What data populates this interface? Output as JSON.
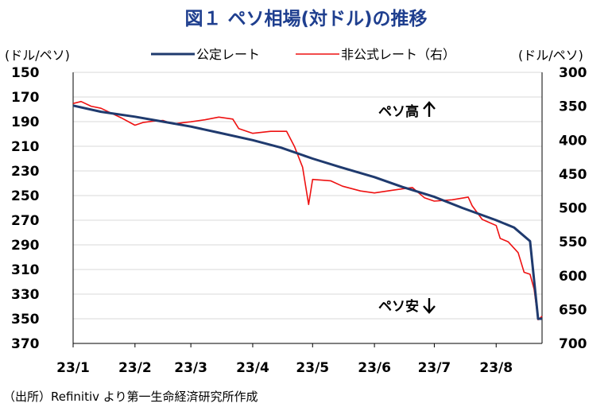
{
  "page": {
    "title": "図１ ペソ相場(対ドル)の推移",
    "source": "（出所）Refinitiv より第一生命経済研究所作成"
  },
  "chart_data": {
    "type": "line",
    "title": "図１ ペソ相場(対ドル)の推移",
    "left_axis": {
      "unit_label": "(ドル/ペソ)",
      "min": 150,
      "max": 370,
      "reversed": true,
      "ticks": [
        150,
        170,
        190,
        210,
        230,
        250,
        270,
        290,
        310,
        330,
        350,
        370
      ]
    },
    "right_axis": {
      "unit_label": "(ドル/ペソ)",
      "min": 300,
      "max": 700,
      "reversed": true,
      "ticks": [
        300,
        350,
        400,
        450,
        500,
        550,
        600,
        650,
        700
      ]
    },
    "x_axis": {
      "ticks": [
        "23/1",
        "23/2",
        "23/3",
        "23/4",
        "23/5",
        "23/6",
        "23/7",
        "23/8"
      ],
      "range": [
        "2023-01-01",
        "2023-08-24"
      ]
    },
    "annotations": {
      "up": "ペソ高",
      "down": "ペソ安"
    },
    "grid": true,
    "legend_position": "top",
    "series": [
      {
        "name": "公定レート",
        "axis": "left",
        "color": "#1f3a6e",
        "points": [
          [
            "2023-01-01",
            177
          ],
          [
            "2023-01-15",
            182
          ],
          [
            "2023-02-01",
            186
          ],
          [
            "2023-02-15",
            190
          ],
          [
            "2023-03-01",
            194
          ],
          [
            "2023-03-15",
            199
          ],
          [
            "2023-04-01",
            205
          ],
          [
            "2023-04-15",
            211
          ],
          [
            "2023-05-01",
            220
          ],
          [
            "2023-05-15",
            227
          ],
          [
            "2023-06-01",
            235
          ],
          [
            "2023-06-15",
            243
          ],
          [
            "2023-07-01",
            251
          ],
          [
            "2023-07-15",
            260
          ],
          [
            "2023-08-01",
            270
          ],
          [
            "2023-08-10",
            276
          ],
          [
            "2023-08-18",
            287
          ],
          [
            "2023-08-22",
            350
          ],
          [
            "2023-08-24",
            350
          ]
        ]
      },
      {
        "name": "非公式レート（右）",
        "axis": "right",
        "color": "#ee1111",
        "points": [
          [
            "2023-01-01",
            346
          ],
          [
            "2023-01-05",
            343
          ],
          [
            "2023-01-10",
            350
          ],
          [
            "2023-01-15",
            353
          ],
          [
            "2023-01-20",
            360
          ],
          [
            "2023-01-25",
            367
          ],
          [
            "2023-02-01",
            378
          ],
          [
            "2023-02-05",
            374
          ],
          [
            "2023-02-10",
            372
          ],
          [
            "2023-02-15",
            371
          ],
          [
            "2023-02-20",
            376
          ],
          [
            "2023-03-01",
            373
          ],
          [
            "2023-03-08",
            370
          ],
          [
            "2023-03-15",
            366
          ],
          [
            "2023-03-22",
            369
          ],
          [
            "2023-03-25",
            383
          ],
          [
            "2023-04-01",
            390
          ],
          [
            "2023-04-10",
            387
          ],
          [
            "2023-04-18",
            387
          ],
          [
            "2023-04-22",
            410
          ],
          [
            "2023-04-26",
            440
          ],
          [
            "2023-04-29",
            495
          ],
          [
            "2023-05-01",
            458
          ],
          [
            "2023-05-10",
            460
          ],
          [
            "2023-05-16",
            468
          ],
          [
            "2023-05-25",
            475
          ],
          [
            "2023-06-01",
            478
          ],
          [
            "2023-06-10",
            474
          ],
          [
            "2023-06-20",
            470
          ],
          [
            "2023-06-26",
            485
          ],
          [
            "2023-07-01",
            490
          ],
          [
            "2023-07-10",
            488
          ],
          [
            "2023-07-18",
            484
          ],
          [
            "2023-07-20",
            497
          ],
          [
            "2023-07-25",
            517
          ],
          [
            "2023-08-01",
            526
          ],
          [
            "2023-08-03",
            545
          ],
          [
            "2023-08-07",
            550
          ],
          [
            "2023-08-12",
            566
          ],
          [
            "2023-08-15",
            595
          ],
          [
            "2023-08-18",
            598
          ],
          [
            "2023-08-20",
            620
          ],
          [
            "2023-08-22",
            665
          ],
          [
            "2023-08-24",
            660
          ]
        ]
      }
    ]
  }
}
